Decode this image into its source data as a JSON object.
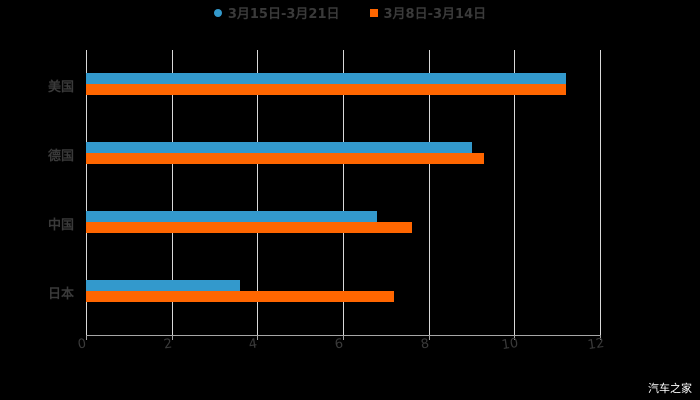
{
  "chart_data": {
    "type": "bar",
    "orientation": "horizontal",
    "title": "",
    "xlabel": "",
    "ylabel": "",
    "categories": [
      "美国",
      "德国",
      "中国",
      "日本"
    ],
    "series": [
      {
        "name": "3月15日-3月21日",
        "color": "#3399cc",
        "values": [
          11.2,
          9.0,
          6.8,
          3.6
        ]
      },
      {
        "name": "3月8日-3月14日",
        "color": "#ff6600",
        "values": [
          11.2,
          9.3,
          7.6,
          7.2
        ]
      }
    ],
    "xlim": [
      0,
      12
    ],
    "xticks": [
      "0",
      "2",
      "4",
      "6",
      "8",
      "10",
      "12"
    ],
    "grid": true,
    "legend_position": "top"
  },
  "legend": [
    {
      "label": "3月15日-3月21日",
      "color": "#3399cc",
      "shape": "circle"
    },
    {
      "label": "3月8日-3月14日",
      "color": "#ff6600",
      "shape": "square"
    }
  ],
  "watermark": "汽车之家"
}
